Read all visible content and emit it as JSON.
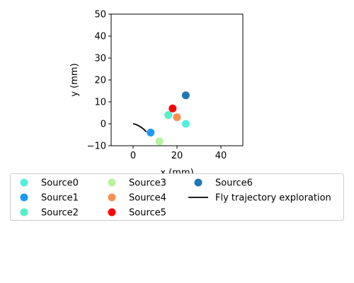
{
  "chart_data": {
    "type": "scatter",
    "xlabel": "x (mm)",
    "ylabel": "y (mm)",
    "xlim": [
      -10,
      50
    ],
    "ylim": [
      -10,
      50
    ],
    "xticks": [
      0,
      20,
      40
    ],
    "yticks": [
      -10,
      0,
      10,
      20,
      30,
      40,
      50
    ],
    "grid": false,
    "legend_position": "below",
    "series": [
      {
        "name": "Source0",
        "color": "#55eedd",
        "points": [
          [
            24,
            0
          ]
        ]
      },
      {
        "name": "Source1",
        "color": "#1e98f5",
        "points": [
          [
            8,
            -4
          ]
        ]
      },
      {
        "name": "Source2",
        "color": "#55f0c8",
        "points": [
          [
            16,
            4
          ]
        ]
      },
      {
        "name": "Source3",
        "color": "#b6f59a",
        "points": [
          [
            12,
            -8
          ]
        ]
      },
      {
        "name": "Source4",
        "color": "#f9904e",
        "points": [
          [
            20,
            3
          ]
        ]
      },
      {
        "name": "Source5",
        "color": "#ff0000",
        "points": [
          [
            18,
            7
          ]
        ]
      },
      {
        "name": "Source6",
        "color": "#1f77b4",
        "points": [
          [
            24,
            13
          ]
        ]
      }
    ],
    "trajectory": {
      "name": "Fly trajectory exploration",
      "color": "#000000",
      "points": [
        [
          0,
          0
        ],
        [
          1,
          -0.2
        ],
        [
          2,
          -0.6
        ],
        [
          3,
          -1.2
        ],
        [
          4,
          -1.8
        ],
        [
          5,
          -2.6
        ],
        [
          6,
          -3.6
        ]
      ]
    }
  }
}
